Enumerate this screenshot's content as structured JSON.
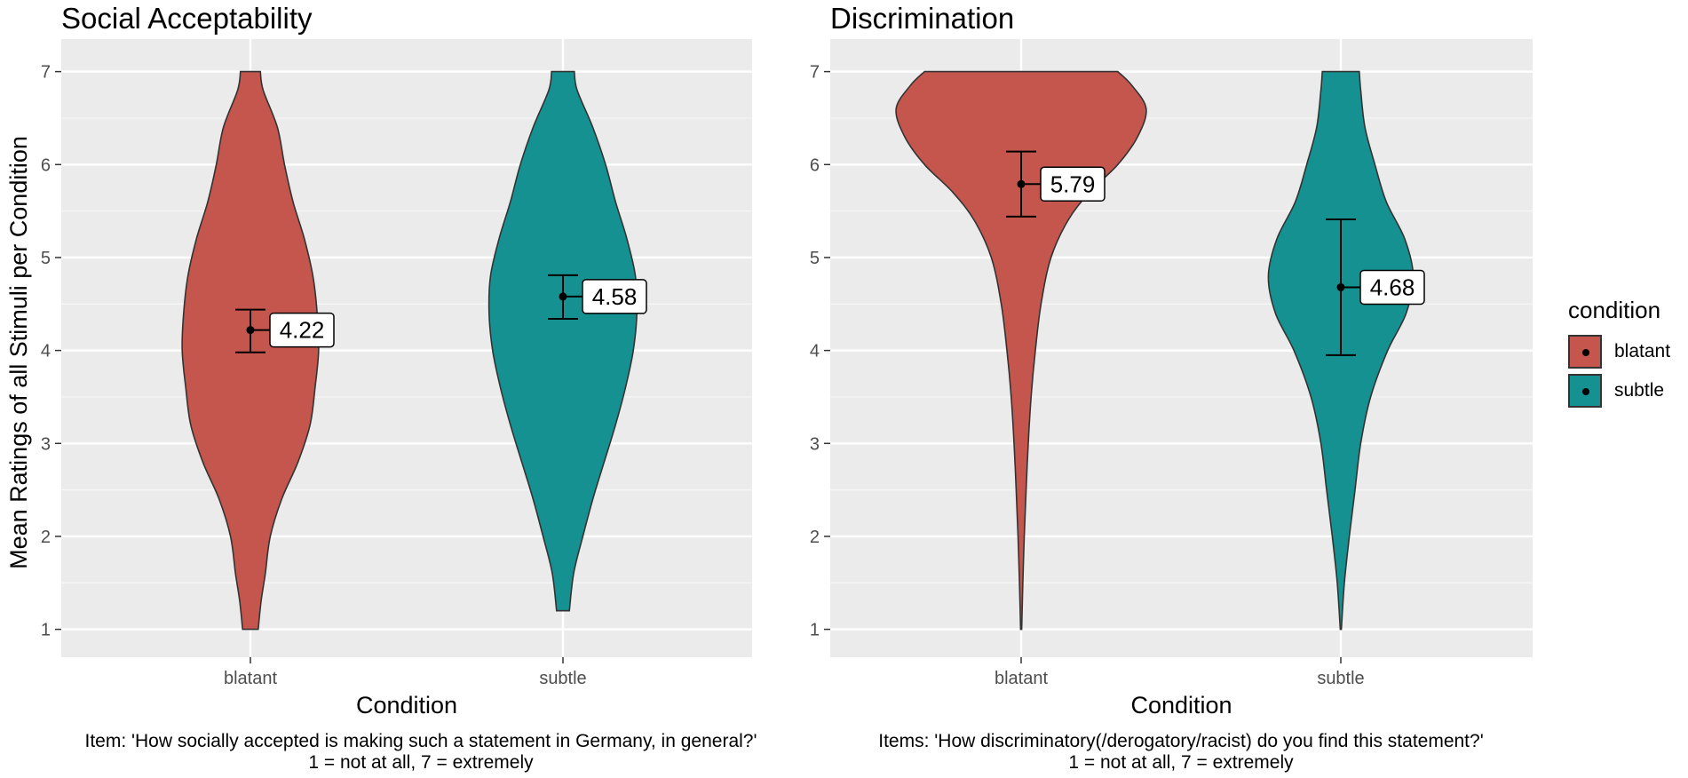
{
  "legend": {
    "title": "condition",
    "items": [
      {
        "label": "blatant",
        "color": "#C5564E"
      },
      {
        "label": "subtle",
        "color": "#159191"
      }
    ]
  },
  "chart_data": [
    {
      "type": "violin",
      "title": "Social Acceptability",
      "xlabel": "Condition",
      "ylabel": "Mean Ratings of all Stimuli per Condition",
      "categories": [
        "blatant",
        "subtle"
      ],
      "ylim": [
        0.7,
        7.35
      ],
      "yticks": [
        1,
        2,
        3,
        4,
        5,
        6,
        7
      ],
      "caption_line1": "Item: 'How socially accepted is making such a statement in Germany, in general?'",
      "caption_line2": "1 = not at all, 7 = extremely",
      "series": [
        {
          "name": "blatant",
          "color": "#C5564E",
          "mean": 4.22,
          "label": "4.22",
          "ci": [
            3.98,
            4.44
          ],
          "profile": [
            [
              1.0,
              0.055
            ],
            [
              1.3,
              0.075
            ],
            [
              1.6,
              0.105
            ],
            [
              2.0,
              0.14
            ],
            [
              2.4,
              0.22
            ],
            [
              2.8,
              0.335
            ],
            [
              3.2,
              0.42
            ],
            [
              3.6,
              0.455
            ],
            [
              4.0,
              0.48
            ],
            [
              4.4,
              0.47
            ],
            [
              4.8,
              0.44
            ],
            [
              5.2,
              0.38
            ],
            [
              5.6,
              0.3
            ],
            [
              6.0,
              0.24
            ],
            [
              6.4,
              0.19
            ],
            [
              6.8,
              0.09
            ],
            [
              7.0,
              0.07
            ]
          ]
        },
        {
          "name": "subtle",
          "color": "#159191",
          "mean": 4.58,
          "label": "4.58",
          "ci": [
            4.34,
            4.81
          ],
          "profile": [
            [
              1.2,
              0.045
            ],
            [
              1.6,
              0.075
            ],
            [
              2.0,
              0.14
            ],
            [
              2.4,
              0.21
            ],
            [
              2.8,
              0.29
            ],
            [
              3.2,
              0.37
            ],
            [
              3.6,
              0.44
            ],
            [
              4.0,
              0.495
            ],
            [
              4.4,
              0.52
            ],
            [
              4.8,
              0.51
            ],
            [
              5.2,
              0.45
            ],
            [
              5.6,
              0.37
            ],
            [
              6.0,
              0.3
            ],
            [
              6.4,
              0.21
            ],
            [
              6.8,
              0.1
            ],
            [
              7.0,
              0.08
            ]
          ]
        }
      ]
    },
    {
      "type": "violin",
      "title": "Discrimination",
      "xlabel": "Condition",
      "ylabel": "",
      "categories": [
        "blatant",
        "subtle"
      ],
      "ylim": [
        0.7,
        7.35
      ],
      "yticks": [
        1,
        2,
        3,
        4,
        5,
        6,
        7
      ],
      "caption_line1": "Items: 'How discriminatory(/derogatory/racist) do you find this statement?'",
      "caption_line2": "1 = not at all, 7 = extremely",
      "series": [
        {
          "name": "blatant",
          "color": "#C5564E",
          "mean": 5.79,
          "label": "5.79",
          "ci": [
            5.44,
            6.14
          ],
          "profile": [
            [
              1.0,
              0.004
            ],
            [
              1.5,
              0.012
            ],
            [
              2.0,
              0.022
            ],
            [
              2.5,
              0.035
            ],
            [
              3.0,
              0.05
            ],
            [
              3.5,
              0.07
            ],
            [
              4.0,
              0.1
            ],
            [
              4.5,
              0.14
            ],
            [
              5.0,
              0.21
            ],
            [
              5.4,
              0.33
            ],
            [
              5.7,
              0.48
            ],
            [
              6.0,
              0.68
            ],
            [
              6.3,
              0.82
            ],
            [
              6.6,
              0.88
            ],
            [
              6.85,
              0.78
            ],
            [
              7.0,
              0.68
            ]
          ]
        },
        {
          "name": "subtle",
          "color": "#159191",
          "mean": 4.68,
          "label": "4.68",
          "ci": [
            3.95,
            5.41
          ],
          "profile": [
            [
              1.0,
              0.004
            ],
            [
              1.5,
              0.025
            ],
            [
              2.0,
              0.06
            ],
            [
              2.5,
              0.1
            ],
            [
              3.0,
              0.14
            ],
            [
              3.5,
              0.21
            ],
            [
              4.0,
              0.33
            ],
            [
              4.4,
              0.46
            ],
            [
              4.8,
              0.51
            ],
            [
              5.2,
              0.45
            ],
            [
              5.6,
              0.32
            ],
            [
              6.0,
              0.24
            ],
            [
              6.4,
              0.17
            ],
            [
              6.8,
              0.14
            ],
            [
              7.0,
              0.13
            ]
          ]
        }
      ]
    }
  ]
}
